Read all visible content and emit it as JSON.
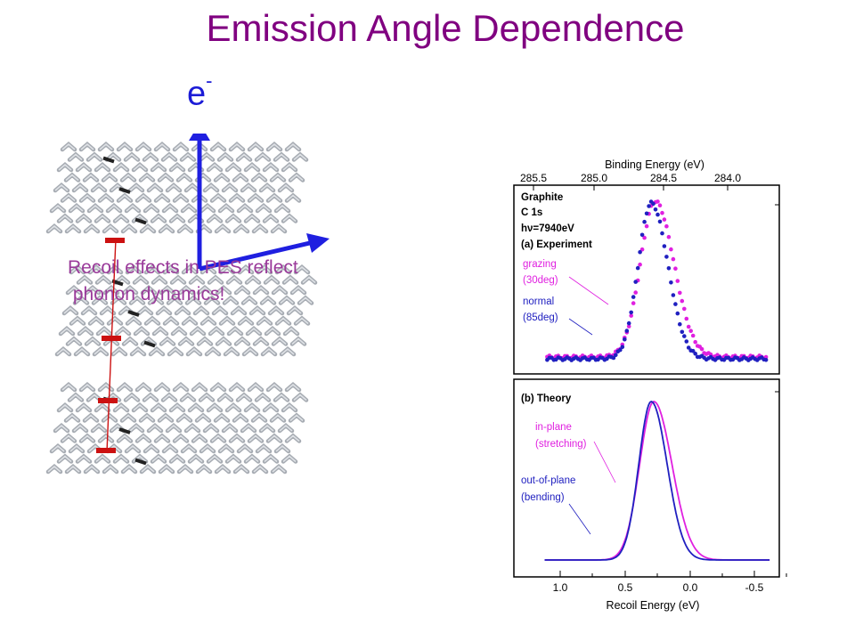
{
  "title": "Emission Angle Dependence",
  "electron_label": "e",
  "electron_superscript": "-",
  "note_line1": "Recoil effects in PES reflect",
  "note_line2": " phonon dynamics!",
  "colors": {
    "title": "#800080",
    "arrow": "#1f1fe0",
    "magenta": "#e020e0",
    "blue": "#2020c0",
    "bond": "#cc1111"
  },
  "chart_data": [
    {
      "type": "scatter",
      "panel": "(a) Experiment",
      "info_lines": [
        "Graphite",
        "C 1s",
        "hν=7940eV",
        "(a) Experiment"
      ],
      "xlabel_top": "Binding Energy (eV)",
      "x_ticks_top": [
        "285.5",
        "285.0",
        "284.5",
        "284.0"
      ],
      "series": [
        {
          "name": "grazing (30deg)",
          "label_lines": [
            "grazing",
            "(30deg)"
          ],
          "color": "#e020e0",
          "peak_recoil_eV": 0.27,
          "width": 0.26
        },
        {
          "name": "normal (85deg)",
          "label_lines": [
            "normal",
            "(85deg)"
          ],
          "color": "#2020c0",
          "peak_recoil_eV": 0.3,
          "width": 0.23
        }
      ]
    },
    {
      "type": "line",
      "panel": "(b) Theory",
      "info_lines": [
        "(b) Theory"
      ],
      "xlabel": "Recoil Energy (eV)",
      "x_ticks": [
        "1.0",
        "0.5",
        "0.0",
        "-0.5"
      ],
      "series": [
        {
          "name": "in-plane (stretching)",
          "label_lines": [
            "in-plane",
            "(stretching)"
          ],
          "color": "#e020e0",
          "peak_recoil_eV": 0.28,
          "width": 0.25
        },
        {
          "name": "out-of-plane (bending)",
          "label_lines": [
            "out-of-plane",
            "(bending)"
          ],
          "color": "#2020c0",
          "peak_recoil_eV": 0.3,
          "width": 0.22
        }
      ]
    }
  ]
}
